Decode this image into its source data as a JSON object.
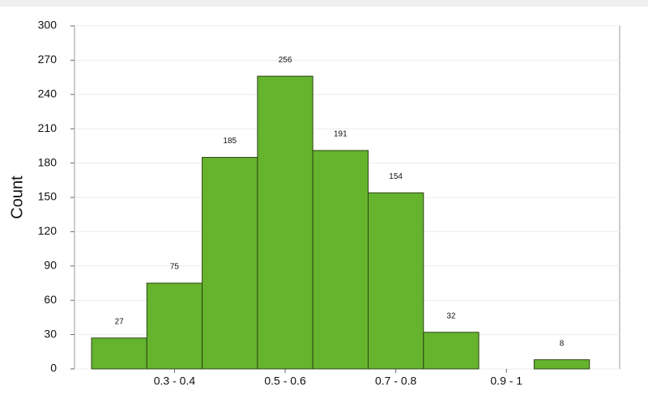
{
  "chart_data": {
    "type": "bar",
    "y_label": "Count",
    "categories": [
      null,
      "0.3 - 0.4",
      null,
      "0.5 - 0.6",
      null,
      "0.7 - 0.8",
      null,
      "0.9 - 1",
      null
    ],
    "values": [
      27,
      75,
      185,
      256,
      191,
      154,
      32,
      0,
      8
    ],
    "color": "#66b32e",
    "ylim": [
      0,
      300
    ],
    "yticks": [
      0,
      30,
      60,
      90,
      120,
      150,
      180,
      210,
      240,
      270,
      300
    ],
    "grid": true
  }
}
